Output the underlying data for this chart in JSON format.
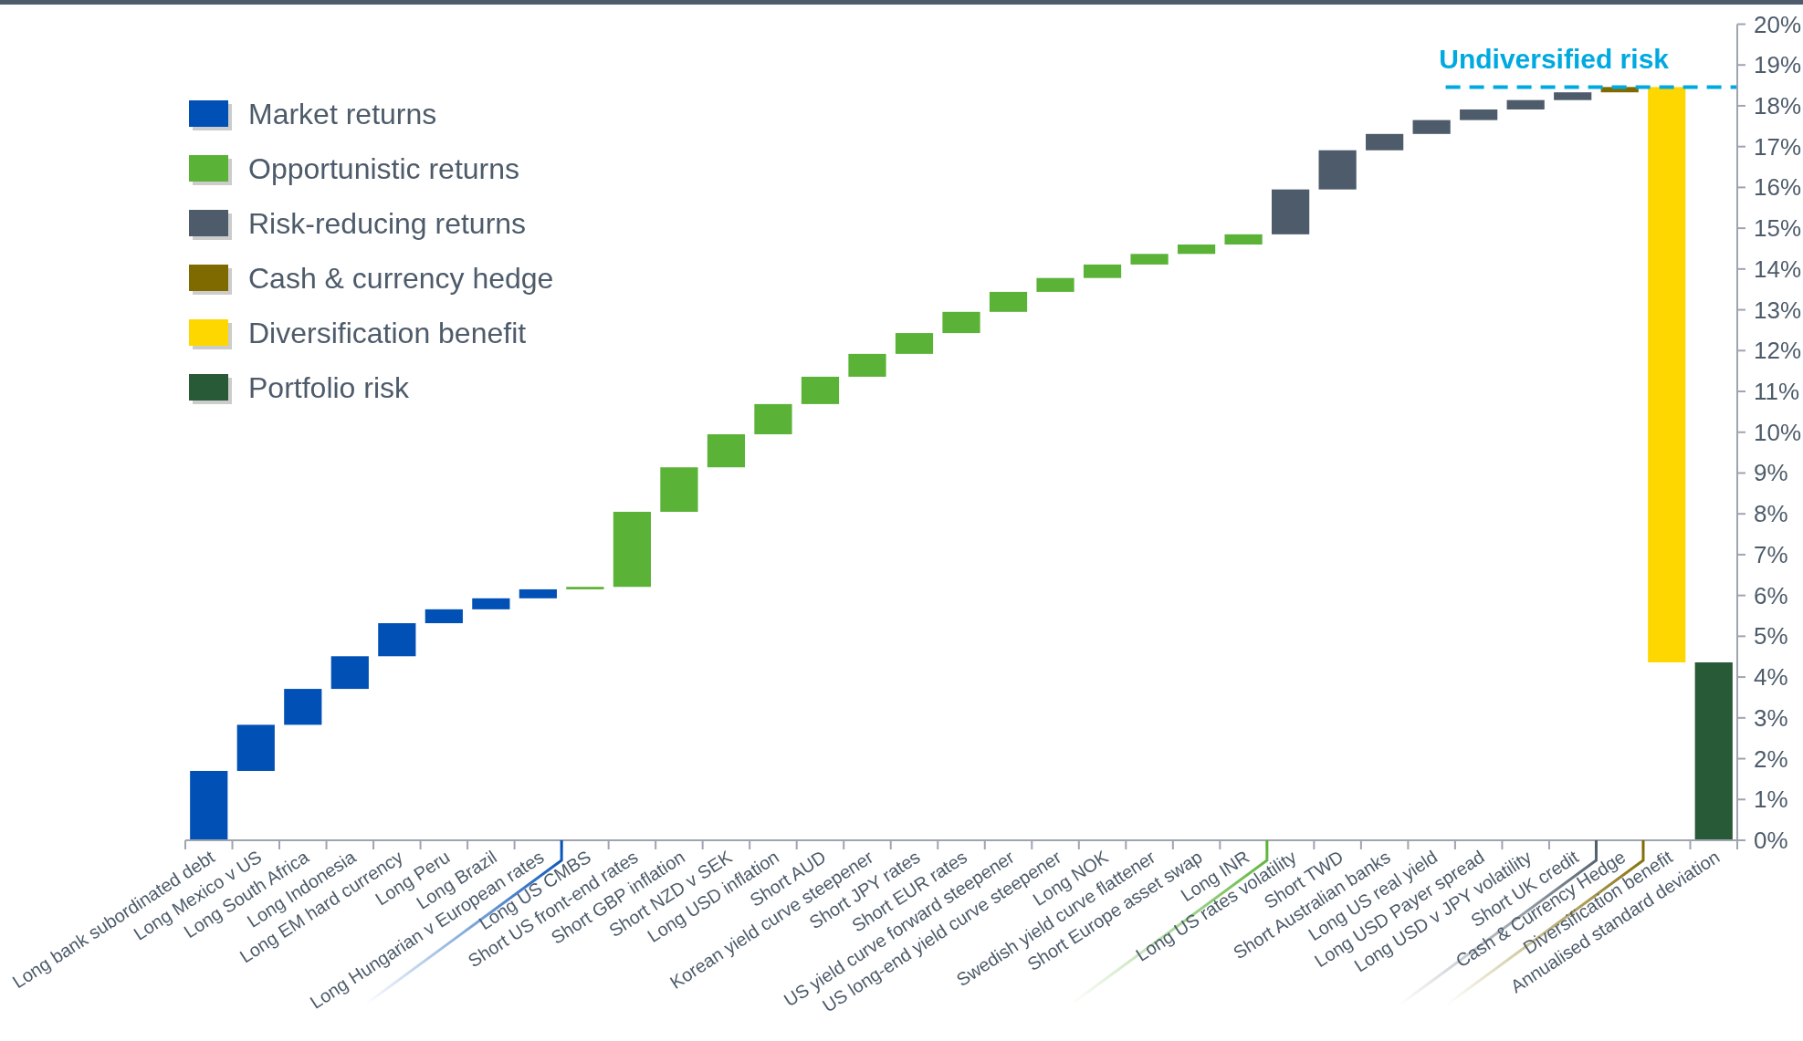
{
  "chart_data": {
    "type": "bar",
    "categories": [
      "Long bank subordinated debt",
      "Long Mexico v US",
      "Long South Africa",
      "Long Indonesia",
      "Long EM hard currency",
      "Long Peru",
      "Long Brazil",
      "Long Hungarian v European rates",
      "Long US CMBS",
      "Short US front-end rates",
      "Short GBP inflation",
      "Short NZD v SEK",
      "Long USD inflation",
      "Short AUD",
      "Korean yield curve steepener",
      "Short JPY rates",
      "Short EUR rates",
      "US yield curve forward steepener",
      "US long-end yield curve steepener",
      "Long NOK",
      "Swedish yield curve flattener",
      "Short Europe asset swap",
      "Long INR",
      "Long US rates volatility",
      "Short TWD",
      "Short Australian banks",
      "Long US real yield",
      "Long USD Payer spread",
      "Long USD v JPY volatility",
      "Short UK credit",
      "Cash & Currency Hedge",
      "Diversification benefit",
      "Annualised standard deviation"
    ],
    "series": [
      {
        "name": "Market returns",
        "color": "#0050b5",
        "base": [
          0,
          1.7,
          2.83,
          3.71,
          4.51,
          5.32,
          5.66,
          5.93,
          null,
          null,
          null,
          null,
          null,
          null,
          null,
          null,
          null,
          null,
          null,
          null,
          null,
          null,
          null,
          null,
          null,
          null,
          null,
          null,
          null,
          null,
          null,
          null,
          null
        ],
        "values": [
          1.7,
          1.13,
          0.88,
          0.8,
          0.81,
          0.34,
          0.27,
          0.22,
          null,
          null,
          null,
          null,
          null,
          null,
          null,
          null,
          null,
          null,
          null,
          null,
          null,
          null,
          null,
          null,
          null,
          null,
          null,
          null,
          null,
          null,
          null,
          null,
          null
        ]
      },
      {
        "name": "Opportunistic returns",
        "color": "#5ab237",
        "base": [
          null,
          null,
          null,
          null,
          null,
          null,
          null,
          null,
          6.15,
          6.21,
          8.05,
          9.14,
          9.95,
          10.69,
          11.36,
          11.92,
          12.43,
          12.95,
          13.44,
          13.78,
          14.11,
          14.37,
          14.6,
          null,
          null,
          null,
          null,
          null,
          null,
          null,
          null,
          null,
          null
        ],
        "values": [
          null,
          null,
          null,
          null,
          null,
          null,
          null,
          null,
          0.06,
          1.84,
          1.09,
          0.81,
          0.74,
          0.67,
          0.56,
          0.51,
          0.52,
          0.49,
          0.34,
          0.33,
          0.26,
          0.23,
          0.25,
          null,
          null,
          null,
          null,
          null,
          null,
          null,
          null,
          null,
          null
        ]
      },
      {
        "name": "Risk-reducing returns",
        "color": "#4d5b6a",
        "base": [
          null,
          null,
          null,
          null,
          null,
          null,
          null,
          null,
          null,
          null,
          null,
          null,
          null,
          null,
          null,
          null,
          null,
          null,
          null,
          null,
          null,
          null,
          null,
          14.85,
          15.95,
          16.91,
          17.31,
          17.65,
          17.91,
          18.14,
          null,
          null,
          null
        ],
        "values": [
          null,
          null,
          null,
          null,
          null,
          null,
          null,
          null,
          null,
          null,
          null,
          null,
          null,
          null,
          null,
          null,
          null,
          null,
          null,
          null,
          null,
          null,
          null,
          1.1,
          0.96,
          0.4,
          0.34,
          0.26,
          0.23,
          0.19,
          null,
          null,
          null
        ]
      },
      {
        "name": "Cash & currency hedge",
        "color": "#7f6a00",
        "base": [
          null,
          null,
          null,
          null,
          null,
          null,
          null,
          null,
          null,
          null,
          null,
          null,
          null,
          null,
          null,
          null,
          null,
          null,
          null,
          null,
          null,
          null,
          null,
          null,
          null,
          null,
          null,
          null,
          null,
          null,
          18.33,
          null,
          null
        ],
        "values": [
          null,
          null,
          null,
          null,
          null,
          null,
          null,
          null,
          null,
          null,
          null,
          null,
          null,
          null,
          null,
          null,
          null,
          null,
          null,
          null,
          null,
          null,
          null,
          null,
          null,
          null,
          null,
          null,
          null,
          null,
          0.13,
          null,
          null
        ]
      },
      {
        "name": "Diversification benefit",
        "color": "#ffd700",
        "base": [
          null,
          null,
          null,
          null,
          null,
          null,
          null,
          null,
          null,
          null,
          null,
          null,
          null,
          null,
          null,
          null,
          null,
          null,
          null,
          null,
          null,
          null,
          null,
          null,
          null,
          null,
          null,
          null,
          null,
          null,
          null,
          4.36,
          null
        ],
        "values": [
          null,
          null,
          null,
          null,
          null,
          null,
          null,
          null,
          null,
          null,
          null,
          null,
          null,
          null,
          null,
          null,
          null,
          null,
          null,
          null,
          null,
          null,
          null,
          null,
          null,
          null,
          null,
          null,
          null,
          null,
          null,
          14.1,
          null
        ]
      },
      {
        "name": "Portfolio risk",
        "color": "#285a37",
        "base": [
          null,
          null,
          null,
          null,
          null,
          null,
          null,
          null,
          null,
          null,
          null,
          null,
          null,
          null,
          null,
          null,
          null,
          null,
          null,
          null,
          null,
          null,
          null,
          null,
          null,
          null,
          null,
          null,
          null,
          null,
          null,
          null,
          0
        ],
        "values": [
          null,
          null,
          null,
          null,
          null,
          null,
          null,
          null,
          null,
          null,
          null,
          null,
          null,
          null,
          null,
          null,
          null,
          null,
          null,
          null,
          null,
          null,
          null,
          null,
          null,
          null,
          null,
          null,
          null,
          null,
          null,
          null,
          4.36
        ]
      }
    ],
    "ylim": [
      0,
      20
    ],
    "yticks": [
      {
        "value": 0,
        "label": "0%"
      },
      {
        "value": 1,
        "label": "1%"
      },
      {
        "value": 2,
        "label": "2%"
      },
      {
        "value": 3,
        "label": "3%"
      },
      {
        "value": 4,
        "label": "4%"
      },
      {
        "value": 5,
        "label": "5%"
      },
      {
        "value": 6,
        "label": "6%"
      },
      {
        "value": 7,
        "label": "7%"
      },
      {
        "value": 8,
        "label": "8%"
      },
      {
        "value": 9,
        "label": "9%"
      },
      {
        "value": 10,
        "label": "10%"
      },
      {
        "value": 11,
        "label": "11%"
      },
      {
        "value": 12,
        "label": "12%"
      },
      {
        "value": 13,
        "label": "13%"
      },
      {
        "value": 14,
        "label": "14%"
      },
      {
        "value": 15,
        "label": "15%"
      },
      {
        "value": 16,
        "label": "16%"
      },
      {
        "value": 17,
        "label": "17%"
      },
      {
        "value": 18,
        "label": "18%"
      },
      {
        "value": 19,
        "label": "19%"
      },
      {
        "value": 20,
        "label": "20%"
      }
    ],
    "ref_lines": [
      {
        "axis": "y",
        "value": 18.46,
        "label": "Undiversified risk",
        "color": "#00a9e0",
        "line_style": "dashed"
      }
    ],
    "legend": "top left"
  }
}
